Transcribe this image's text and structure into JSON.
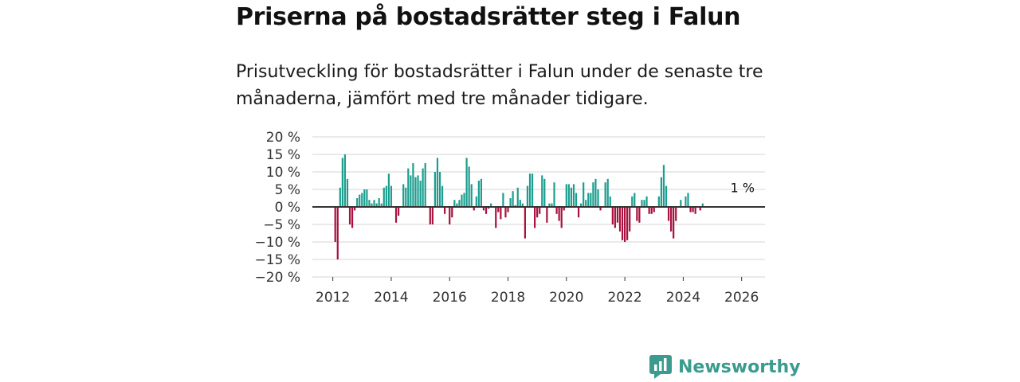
{
  "title": "Priserna på bostadsrätter steg i Falun",
  "subtitle": "Prisutveckling för bostadsrätter i Falun under de senaste tre månaderna, jämfört med tre månader tidigare.",
  "brand": {
    "name": "Newsworthy",
    "icon": "newsworthy-logo-icon",
    "color": "#3a9b8e"
  },
  "colors": {
    "positive": "#1a9e8f",
    "negative": "#a8113f",
    "grid": "#dddddd",
    "zero_line": "#333333"
  },
  "chart_data": {
    "type": "bar",
    "title": "Priserna på bostadsrätter steg i Falun",
    "xlabel": "",
    "ylabel": "",
    "ylim": [
      -20,
      20
    ],
    "y_ticks": [
      20,
      15,
      10,
      5,
      0,
      -5,
      -10,
      -15,
      -20
    ],
    "y_tick_labels": [
      "20 %",
      "15 %",
      "10 %",
      "5 %",
      "0 %",
      "−5 %",
      "−10 %",
      "−15 %",
      "−20 %"
    ],
    "x_ticks": [
      2012,
      2014,
      2016,
      2018,
      2020,
      2022,
      2024,
      2026
    ],
    "x_tick_labels": [
      "2012",
      "2014",
      "2016",
      "2018",
      "2020",
      "2022",
      "2024",
      "2026"
    ],
    "xlim": [
      2011.3,
      2026.8
    ],
    "start": 2011.25,
    "step": 0.08333,
    "series": [
      {
        "name": "Prisutveckling",
        "values": [
          0,
          0,
          0,
          0,
          0,
          0,
          0,
          0,
          0,
          0,
          -10,
          -15,
          5.5,
          14,
          15,
          8,
          -5,
          -6,
          -1,
          2.5,
          3.5,
          4,
          5,
          5,
          2,
          1,
          2,
          1,
          2.5,
          1,
          5.5,
          6,
          9.5,
          6,
          0,
          -4.5,
          -2.5,
          0,
          6.5,
          5.5,
          11,
          9,
          12.5,
          8.5,
          9,
          7.5,
          11,
          12.5,
          0,
          -5,
          -5,
          10,
          14,
          10,
          6,
          -2,
          0,
          -5,
          -3,
          2,
          1,
          2,
          3.5,
          4,
          14,
          11.5,
          6.5,
          -1,
          3,
          7.5,
          8,
          -1,
          -2,
          -0.5,
          1,
          0,
          -6,
          -1.5,
          -3.5,
          4,
          -3,
          -1.5,
          2.5,
          4.5,
          0.5,
          5.5,
          2,
          1,
          -9,
          6,
          9.5,
          9.5,
          -6,
          -3,
          -2,
          9,
          8,
          -4.5,
          1,
          1,
          7,
          -2,
          -4,
          -6,
          -1,
          6.5,
          6.5,
          5.5,
          6.5,
          4,
          -3,
          1,
          7,
          2,
          4,
          4,
          7,
          8,
          5,
          -1,
          0,
          7,
          8,
          3,
          -5,
          -6,
          -4.5,
          -7,
          -9.5,
          -10,
          -9.5,
          -7,
          3,
          4,
          -4,
          -4.5,
          2,
          2,
          3,
          -2,
          -2,
          -1.5,
          0,
          3,
          8.5,
          12,
          6,
          -4,
          -7,
          -9,
          -4,
          0,
          2,
          0,
          3,
          4,
          -1.5,
          -1.5,
          -2,
          0,
          -1,
          1
        ]
      }
    ],
    "annotations": [
      {
        "text": "1 %",
        "x": 2026,
        "y": 1
      }
    ]
  }
}
